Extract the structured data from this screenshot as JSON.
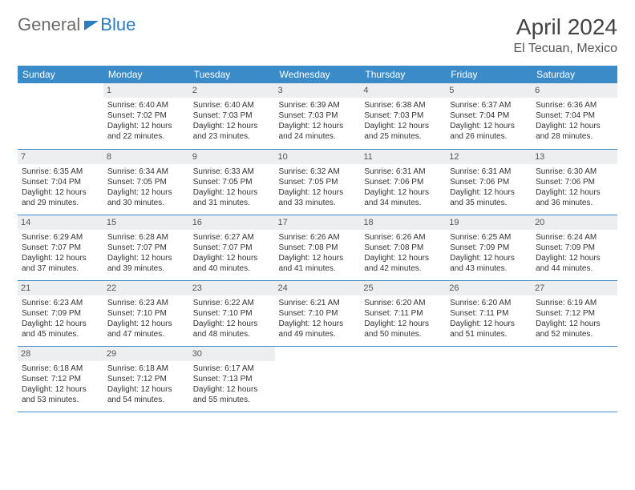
{
  "logo": {
    "part1": "General",
    "part2": "Blue"
  },
  "title": "April 2024",
  "subtitle": "El Tecuan, Mexico",
  "colors": {
    "header_bg": "#3b8bc9",
    "header_text": "#ffffff",
    "daynum_bg": "#eceeef",
    "border": "#3b8bc9",
    "logo_gray": "#6b6b6b",
    "logo_blue": "#2a7cc0"
  },
  "weekdays": [
    "Sunday",
    "Monday",
    "Tuesday",
    "Wednesday",
    "Thursday",
    "Friday",
    "Saturday"
  ],
  "first_weekday_index": 1,
  "days": [
    {
      "n": 1,
      "sr": "6:40 AM",
      "ss": "7:02 PM",
      "dl": "12 hours and 22 minutes."
    },
    {
      "n": 2,
      "sr": "6:40 AM",
      "ss": "7:03 PM",
      "dl": "12 hours and 23 minutes."
    },
    {
      "n": 3,
      "sr": "6:39 AM",
      "ss": "7:03 PM",
      "dl": "12 hours and 24 minutes."
    },
    {
      "n": 4,
      "sr": "6:38 AM",
      "ss": "7:03 PM",
      "dl": "12 hours and 25 minutes."
    },
    {
      "n": 5,
      "sr": "6:37 AM",
      "ss": "7:04 PM",
      "dl": "12 hours and 26 minutes."
    },
    {
      "n": 6,
      "sr": "6:36 AM",
      "ss": "7:04 PM",
      "dl": "12 hours and 28 minutes."
    },
    {
      "n": 7,
      "sr": "6:35 AM",
      "ss": "7:04 PM",
      "dl": "12 hours and 29 minutes."
    },
    {
      "n": 8,
      "sr": "6:34 AM",
      "ss": "7:05 PM",
      "dl": "12 hours and 30 minutes."
    },
    {
      "n": 9,
      "sr": "6:33 AM",
      "ss": "7:05 PM",
      "dl": "12 hours and 31 minutes."
    },
    {
      "n": 10,
      "sr": "6:32 AM",
      "ss": "7:05 PM",
      "dl": "12 hours and 33 minutes."
    },
    {
      "n": 11,
      "sr": "6:31 AM",
      "ss": "7:06 PM",
      "dl": "12 hours and 34 minutes."
    },
    {
      "n": 12,
      "sr": "6:31 AM",
      "ss": "7:06 PM",
      "dl": "12 hours and 35 minutes."
    },
    {
      "n": 13,
      "sr": "6:30 AM",
      "ss": "7:06 PM",
      "dl": "12 hours and 36 minutes."
    },
    {
      "n": 14,
      "sr": "6:29 AM",
      "ss": "7:07 PM",
      "dl": "12 hours and 37 minutes."
    },
    {
      "n": 15,
      "sr": "6:28 AM",
      "ss": "7:07 PM",
      "dl": "12 hours and 39 minutes."
    },
    {
      "n": 16,
      "sr": "6:27 AM",
      "ss": "7:07 PM",
      "dl": "12 hours and 40 minutes."
    },
    {
      "n": 17,
      "sr": "6:26 AM",
      "ss": "7:08 PM",
      "dl": "12 hours and 41 minutes."
    },
    {
      "n": 18,
      "sr": "6:26 AM",
      "ss": "7:08 PM",
      "dl": "12 hours and 42 minutes."
    },
    {
      "n": 19,
      "sr": "6:25 AM",
      "ss": "7:09 PM",
      "dl": "12 hours and 43 minutes."
    },
    {
      "n": 20,
      "sr": "6:24 AM",
      "ss": "7:09 PM",
      "dl": "12 hours and 44 minutes."
    },
    {
      "n": 21,
      "sr": "6:23 AM",
      "ss": "7:09 PM",
      "dl": "12 hours and 45 minutes."
    },
    {
      "n": 22,
      "sr": "6:23 AM",
      "ss": "7:10 PM",
      "dl": "12 hours and 47 minutes."
    },
    {
      "n": 23,
      "sr": "6:22 AM",
      "ss": "7:10 PM",
      "dl": "12 hours and 48 minutes."
    },
    {
      "n": 24,
      "sr": "6:21 AM",
      "ss": "7:10 PM",
      "dl": "12 hours and 49 minutes."
    },
    {
      "n": 25,
      "sr": "6:20 AM",
      "ss": "7:11 PM",
      "dl": "12 hours and 50 minutes."
    },
    {
      "n": 26,
      "sr": "6:20 AM",
      "ss": "7:11 PM",
      "dl": "12 hours and 51 minutes."
    },
    {
      "n": 27,
      "sr": "6:19 AM",
      "ss": "7:12 PM",
      "dl": "12 hours and 52 minutes."
    },
    {
      "n": 28,
      "sr": "6:18 AM",
      "ss": "7:12 PM",
      "dl": "12 hours and 53 minutes."
    },
    {
      "n": 29,
      "sr": "6:18 AM",
      "ss": "7:12 PM",
      "dl": "12 hours and 54 minutes."
    },
    {
      "n": 30,
      "sr": "6:17 AM",
      "ss": "7:13 PM",
      "dl": "12 hours and 55 minutes."
    }
  ],
  "labels": {
    "sunrise": "Sunrise:",
    "sunset": "Sunset:",
    "daylight": "Daylight:"
  }
}
